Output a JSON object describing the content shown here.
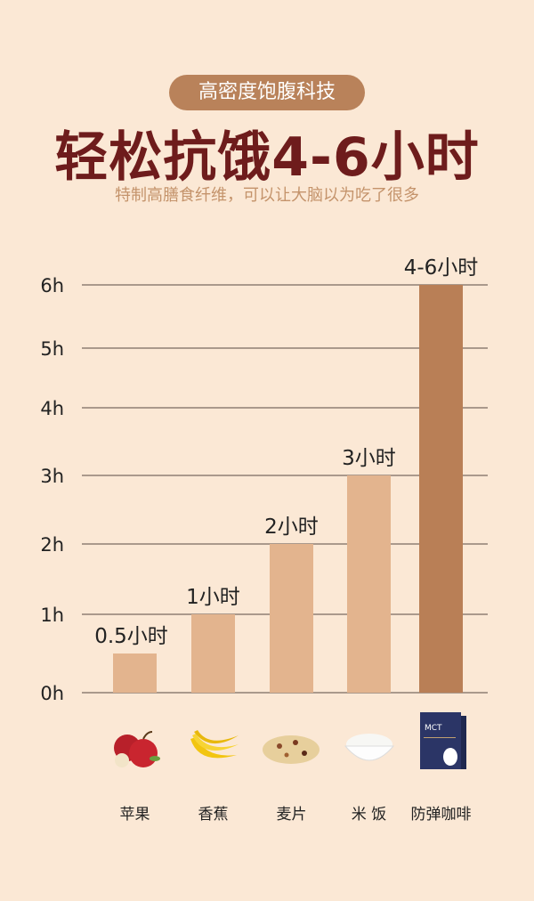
{
  "header": {
    "badge": "高密度饱腹科技",
    "title": "轻松抗饿4-6小时",
    "subtitle": "特制高膳食纤维，可以让大脑以为吃了很多"
  },
  "chart_data": {
    "type": "bar",
    "categories": [
      "苹果",
      "香蕉",
      "麦片",
      "米 饭",
      "防弹咖啡"
    ],
    "values": [
      0.5,
      1,
      2,
      3,
      6
    ],
    "data_labels": [
      "0.5小时",
      "1小时",
      "2小时",
      "3小时",
      "4-6小时"
    ],
    "y_ticks": [
      "0h",
      "1h",
      "2h",
      "3h",
      "4h",
      "5h",
      "6h"
    ],
    "ylim": [
      0,
      6
    ],
    "grid": true,
    "colors": {
      "default_bar": "#e3b48e",
      "highlight_bar": "#b97f56",
      "grid": "#7a6a60"
    },
    "category_icons": [
      "apple-icon",
      "banana-icon",
      "oatmeal-icon",
      "rice-bowl-icon",
      "coffee-box-icon"
    ],
    "product_box_text": "MCT"
  }
}
